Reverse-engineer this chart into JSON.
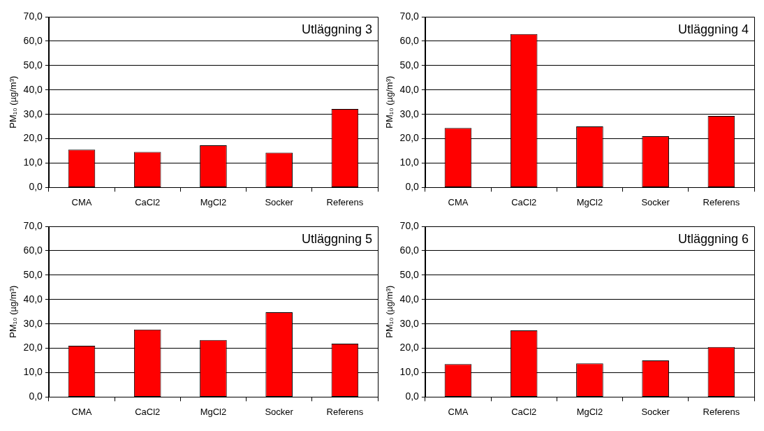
{
  "chart_data": [
    {
      "type": "bar",
      "title": "Utläggning 3",
      "ylabel": "PM₁₀ (µg/m³)",
      "categories": [
        "CMA",
        "CaCl2",
        "MgCl2",
        "Socker",
        "Referens"
      ],
      "values": [
        15.5,
        14.6,
        17.3,
        14.3,
        32.2
      ],
      "color": "#ff0000",
      "ylim": [
        0,
        70
      ],
      "yticks": [
        {
          "value": 0,
          "label": "0,0"
        },
        {
          "value": 10,
          "label": "10,0"
        },
        {
          "value": 20,
          "label": "20,0"
        },
        {
          "value": 30,
          "label": "30,0"
        },
        {
          "value": 40,
          "label": "40,0"
        },
        {
          "value": 50,
          "label": "50,0"
        },
        {
          "value": 60,
          "label": "60,0"
        },
        {
          "value": 70,
          "label": "70,0"
        }
      ],
      "grid": "y"
    },
    {
      "type": "bar",
      "title": "Utläggning 4",
      "ylabel": "PM₁₀ (µg/m³)",
      "categories": [
        "CMA",
        "CaCl2",
        "MgCl2",
        "Socker",
        "Referens"
      ],
      "values": [
        24.4,
        62.9,
        25.0,
        21.0,
        29.3
      ],
      "color": "#ff0000",
      "ylim": [
        0,
        70
      ],
      "yticks": [
        {
          "value": 0,
          "label": "0,0"
        },
        {
          "value": 10,
          "label": "10,0"
        },
        {
          "value": 20,
          "label": "20,0"
        },
        {
          "value": 30,
          "label": "30,0"
        },
        {
          "value": 40,
          "label": "40,0"
        },
        {
          "value": 50,
          "label": "50,0"
        },
        {
          "value": 60,
          "label": "60,0"
        },
        {
          "value": 70,
          "label": "70,0"
        }
      ],
      "grid": "y"
    },
    {
      "type": "bar",
      "title": "Utläggning 5",
      "ylabel": "PM₁₀ (µg/m³)",
      "categories": [
        "CMA",
        "CaCl2",
        "MgCl2",
        "Socker",
        "Referens"
      ],
      "values": [
        21.0,
        27.7,
        23.4,
        34.8,
        21.9
      ],
      "color": "#ff0000",
      "ylim": [
        0,
        70
      ],
      "yticks": [
        {
          "value": 0,
          "label": "0,0"
        },
        {
          "value": 10,
          "label": "10,0"
        },
        {
          "value": 20,
          "label": "20,0"
        },
        {
          "value": 30,
          "label": "30,0"
        },
        {
          "value": 40,
          "label": "40,0"
        },
        {
          "value": 50,
          "label": "50,0"
        },
        {
          "value": 60,
          "label": "60,0"
        },
        {
          "value": 70,
          "label": "70,0"
        }
      ],
      "grid": "y"
    },
    {
      "type": "bar",
      "title": "Utläggning 6",
      "ylabel": "PM₁₀ (µg/m³)",
      "categories": [
        "CMA",
        "CaCl2",
        "MgCl2",
        "Socker",
        "Referens"
      ],
      "values": [
        13.5,
        27.3,
        13.8,
        15.0,
        20.5
      ],
      "color": "#ff0000",
      "ylim": [
        0,
        70
      ],
      "yticks": [
        {
          "value": 0,
          "label": "0,0"
        },
        {
          "value": 10,
          "label": "10,0"
        },
        {
          "value": 20,
          "label": "20,0"
        },
        {
          "value": 30,
          "label": "30,0"
        },
        {
          "value": 40,
          "label": "40,0"
        },
        {
          "value": 50,
          "label": "50,0"
        },
        {
          "value": 60,
          "label": "60,0"
        },
        {
          "value": 70,
          "label": "70,0"
        }
      ],
      "grid": "y"
    }
  ]
}
